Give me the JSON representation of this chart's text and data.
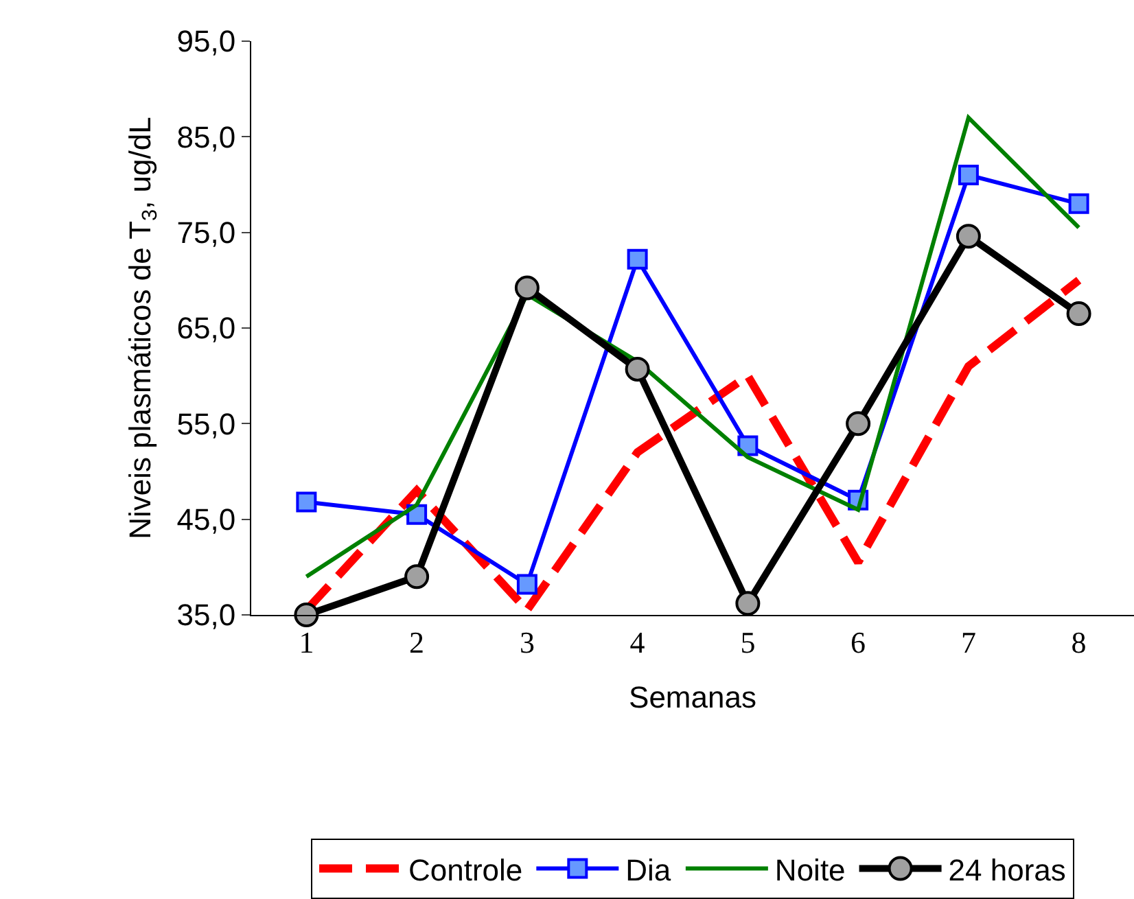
{
  "chart_data": {
    "type": "line",
    "xlabel": "Semanas",
    "ylabel": "Niveis plasmáticos de T$_{3}$, ug/dL",
    "categories": [
      "1",
      "2",
      "3",
      "4",
      "5",
      "6",
      "7",
      "8"
    ],
    "ylim": [
      35,
      95
    ],
    "yticks": [
      {
        "value": 35,
        "label": "35,0"
      },
      {
        "value": 45,
        "label": "45,0"
      },
      {
        "value": 55,
        "label": "55,0"
      },
      {
        "value": 65,
        "label": "65,0"
      },
      {
        "value": 75,
        "label": "75,0"
      },
      {
        "value": 85,
        "label": "85,0"
      },
      {
        "value": 95,
        "label": "95,0"
      }
    ],
    "legend": "bottom",
    "series": [
      {
        "name": "Controle",
        "color": "#ff0000",
        "line_style": "dashed",
        "marker": "none",
        "values": [
          35.5,
          48,
          35.5,
          52,
          60,
          40.5,
          61,
          70
        ]
      },
      {
        "name": "Dia",
        "color": "#0000ff",
        "line_style": "solid",
        "marker": "square",
        "values": [
          46.8,
          45.5,
          38.2,
          72.2,
          52.7,
          47,
          81,
          78
        ]
      },
      {
        "name": "Noite",
        "color": "#008000",
        "line_style": "solid",
        "marker": "none",
        "values": [
          39,
          46.5,
          68.5,
          61.5,
          51.5,
          46,
          87,
          75.5
        ]
      },
      {
        "name": "24 horas",
        "color": "#000000",
        "line_style": "solid",
        "marker": "circle",
        "values": [
          35,
          39,
          69.2,
          60.7,
          36.2,
          55,
          74.6,
          66.5
        ]
      }
    ]
  }
}
